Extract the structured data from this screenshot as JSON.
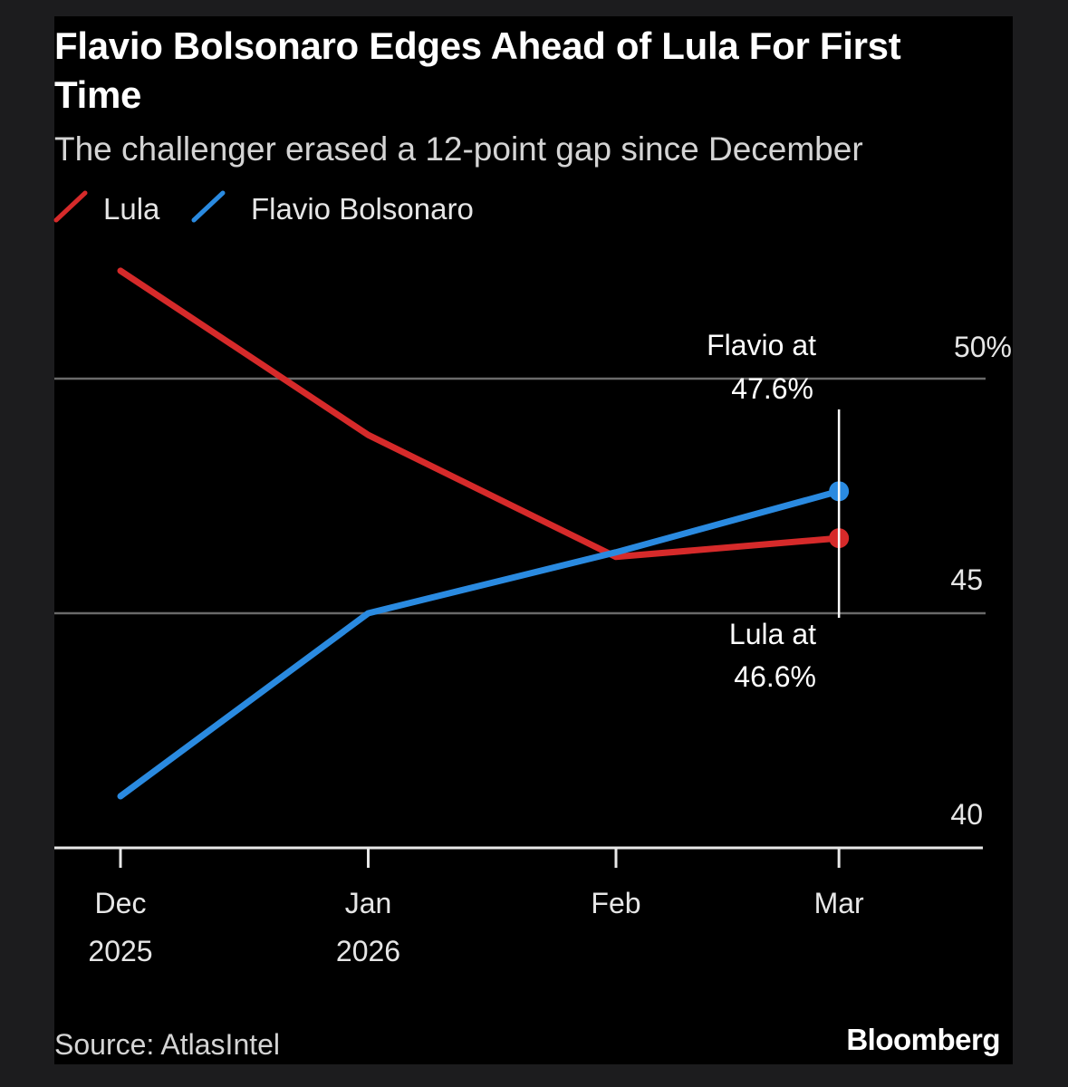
{
  "chart_data": {
    "type": "line",
    "title": "Flavio Bolsonaro Edges Ahead of Lula For First Time",
    "subtitle": "The challenger erased a 12-point gap since December",
    "categories": [
      "Dec 2025",
      "Jan 2026",
      "Feb",
      "Mar"
    ],
    "x_tick_labels": [
      {
        "line1": "Dec",
        "line2": "2025"
      },
      {
        "line1": "Jan",
        "line2": "2026"
      },
      {
        "line1": "Feb",
        "line2": ""
      },
      {
        "line1": "Mar",
        "line2": ""
      }
    ],
    "x_positions": [
      0,
      1,
      2,
      2.9
    ],
    "series": [
      {
        "name": "Lula",
        "color": "#d62a2a",
        "values": [
          52.3,
          48.8,
          46.2,
          46.6
        ]
      },
      {
        "name": "Flavio Bolsonaro",
        "color": "#2a8ae0",
        "values": [
          41.1,
          45.0,
          46.3,
          47.6
        ]
      }
    ],
    "ylim": [
      40,
      53
    ],
    "y_ticks": [
      {
        "value": 40,
        "label": "40"
      },
      {
        "value": 45,
        "label": "45"
      },
      {
        "value": 50,
        "label": "50%"
      }
    ],
    "y_axis_side": "right",
    "legend_position": "top-left",
    "annotations": {
      "flavio": {
        "line1": "Flavio at",
        "line2": "47.6%"
      },
      "lula": {
        "line1": "Lula at",
        "line2": "46.6%"
      }
    },
    "xlabel": "",
    "ylabel": ""
  },
  "footer": {
    "source": "Source: AtlasIntel",
    "brand": "Bloomberg"
  }
}
